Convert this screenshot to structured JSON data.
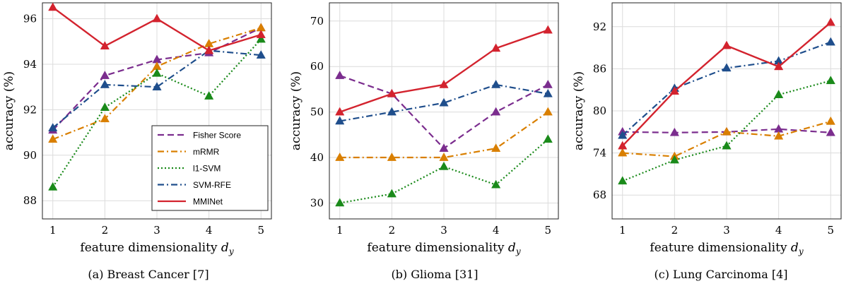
{
  "figure": {
    "colors": {
      "Fisher Score": "#7B2D8E",
      "mRMR": "#D97F00",
      "l1-SVM": "#1A8A1A",
      "SVM-RFE": "#1F4E8C",
      "MMINet": "#D3232E"
    },
    "legend": {
      "placement": "lower-right of panel (a)",
      "entries": [
        {
          "name": "Fisher Score",
          "style": "dashed"
        },
        {
          "name": "mRMR",
          "style": "dashdot"
        },
        {
          "name": "l1-SVM",
          "label": "l1-SVM",
          "style": "dotted"
        },
        {
          "name": "SVM-RFE",
          "style": "dashdot"
        },
        {
          "name": "MMINet",
          "style": "solid"
        }
      ]
    }
  },
  "chart_data": [
    {
      "type": "line",
      "caption": "(a) Breast Cancer [7]",
      "xlabel": "feature dimensionality",
      "xlabel_var": "d",
      "xlabel_sub": "y",
      "ylabel": "accuracy (%)",
      "x": [
        1,
        2,
        3,
        4,
        5
      ],
      "ylim": [
        87.2,
        96.7
      ],
      "yticks": [
        88,
        90,
        92,
        94,
        96
      ],
      "grid": true,
      "series": [
        {
          "name": "Fisher Score",
          "values": [
            91.1,
            93.5,
            94.2,
            94.5,
            95.6
          ]
        },
        {
          "name": "mRMR",
          "values": [
            90.7,
            91.6,
            93.9,
            94.9,
            95.6
          ]
        },
        {
          "name": "l1-SVM",
          "values": [
            88.6,
            92.1,
            93.6,
            92.6,
            95.1
          ]
        },
        {
          "name": "SVM-RFE",
          "values": [
            91.2,
            93.1,
            93.0,
            94.6,
            94.4
          ]
        },
        {
          "name": "MMINet",
          "values": [
            96.5,
            94.8,
            96.0,
            94.6,
            95.3
          ]
        }
      ]
    },
    {
      "type": "line",
      "caption": "(b) Glioma [31]",
      "xlabel": "feature dimensionality",
      "xlabel_var": "d",
      "xlabel_sub": "y",
      "ylabel": "accuracy (%)",
      "x": [
        1,
        2,
        3,
        4,
        5
      ],
      "ylim": [
        26.5,
        74
      ],
      "yticks": [
        30,
        40,
        50,
        60,
        70
      ],
      "grid": true,
      "series": [
        {
          "name": "Fisher Score",
          "values": [
            58,
            54,
            42,
            50,
            56
          ]
        },
        {
          "name": "mRMR",
          "values": [
            40,
            40,
            40,
            42,
            50
          ]
        },
        {
          "name": "l1-SVM",
          "values": [
            30,
            32,
            38,
            34,
            44
          ]
        },
        {
          "name": "SVM-RFE",
          "values": [
            48,
            50,
            52,
            56,
            54
          ]
        },
        {
          "name": "MMINet",
          "values": [
            50,
            54,
            56,
            64,
            68
          ]
        }
      ]
    },
    {
      "type": "line",
      "caption": "(c) Lung Carcinoma [4]",
      "xlabel": "feature dimensionality",
      "xlabel_var": "d",
      "xlabel_sub": "y",
      "ylabel": "accuracy (%)",
      "x": [
        1,
        2,
        3,
        4,
        5
      ],
      "ylim": [
        64.6,
        95.4
      ],
      "yticks": [
        68,
        74,
        80,
        86,
        92
      ],
      "grid": true,
      "series": [
        {
          "name": "Fisher Score",
          "values": [
            77.0,
            76.9,
            77.0,
            77.4,
            76.9
          ]
        },
        {
          "name": "mRMR",
          "values": [
            74.0,
            73.5,
            77.0,
            76.4,
            78.5
          ]
        },
        {
          "name": "l1-SVM",
          "values": [
            70.0,
            73.0,
            75.0,
            82.3,
            84.3
          ]
        },
        {
          "name": "SVM-RFE",
          "values": [
            76.5,
            83.2,
            86.1,
            87.1,
            89.8
          ]
        },
        {
          "name": "MMINet",
          "values": [
            75.0,
            82.8,
            89.3,
            86.3,
            92.6
          ]
        }
      ]
    }
  ]
}
